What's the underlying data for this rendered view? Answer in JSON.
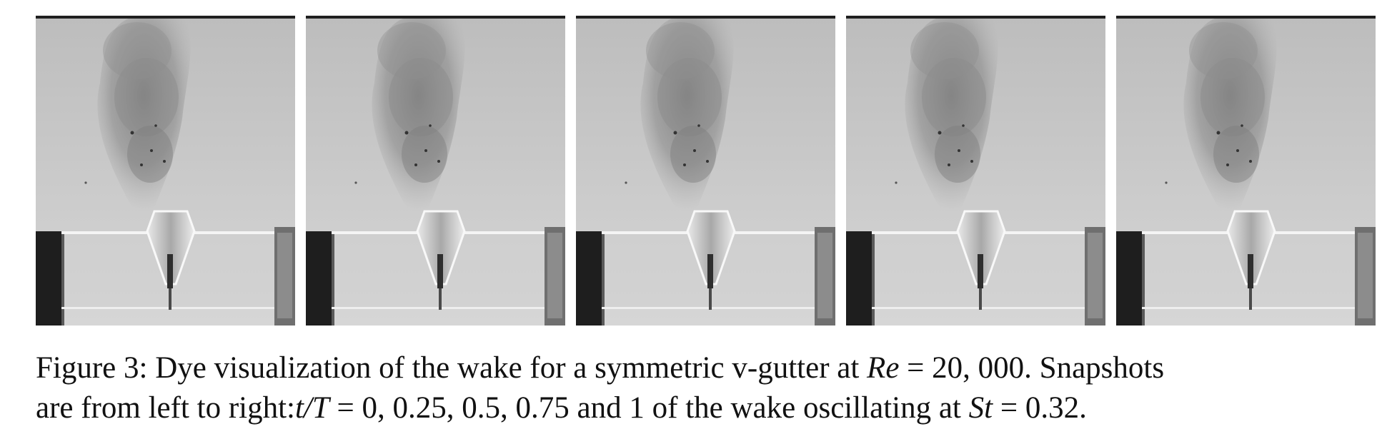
{
  "figure": {
    "panels": [
      {
        "id": "t0"
      },
      {
        "id": "t025"
      },
      {
        "id": "t05"
      },
      {
        "id": "t075"
      },
      {
        "id": "t1"
      }
    ],
    "caption": {
      "line1_label": "Figure 3:",
      "line1_text_a": "Dye visualization of the wake for a symmetric v-gutter at",
      "line1_var": "Re",
      "line1_text_b": "= 20, 000. Snapshots",
      "line2_text_a": "are from left to right:",
      "line2_var": "t/T",
      "line2_text_b": "= 0, 0.25, 0.5, 0.75 and 1 of the wake oscillating at",
      "line2_var2": "St",
      "line2_text_c": "= 0.32."
    }
  }
}
